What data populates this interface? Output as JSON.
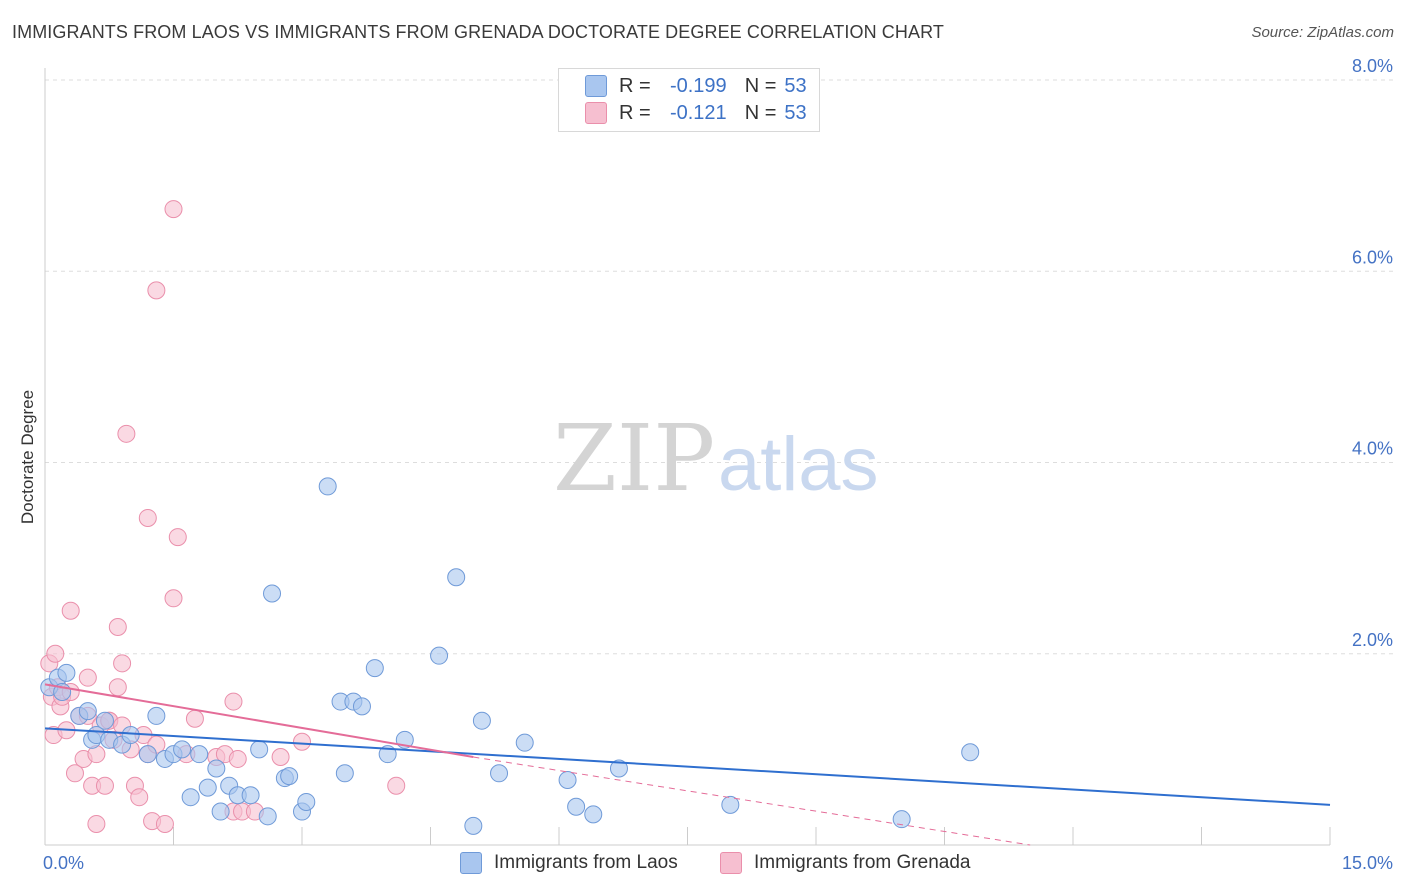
{
  "title": "IMMIGRANTS FROM LAOS VS IMMIGRANTS FROM GRENADA DOCTORATE DEGREE CORRELATION CHART",
  "source": "Source: ZipAtlas.com",
  "watermark": {
    "zip": "ZIP",
    "atlas": "atlas"
  },
  "colors": {
    "blue_fill": "#a9c6ef",
    "blue_stroke": "#6f9ad8",
    "blue_line": "#2f6fcf",
    "pink_fill": "#f6bfd0",
    "pink_stroke": "#ea8fab",
    "pink_line": "#e46c98",
    "axis_text": "#4472c4",
    "grid": "#dddddd"
  },
  "legend": {
    "rows": [
      {
        "r_label": "R = ",
        "r_value": "-0.199",
        "n_label": "N = ",
        "n_value": "53",
        "series": "blue"
      },
      {
        "r_label": "R = ",
        "r_value": "-0.121",
        "n_label": "N = ",
        "n_value": "53",
        "series": "pink"
      }
    ]
  },
  "chart_data": {
    "type": "scatter",
    "title": "IMMIGRANTS FROM LAOS VS IMMIGRANTS FROM GRENADA DOCTORATE DEGREE CORRELATION CHART",
    "xlabel": "",
    "ylabel": "Doctorate Degree",
    "xlim": [
      0,
      15
    ],
    "ylim": [
      0,
      8
    ],
    "x_tick_labels": [
      "0.0%",
      "15.0%"
    ],
    "y_ticks": [
      {
        "value": 2,
        "label": "2.0%"
      },
      {
        "value": 4,
        "label": "4.0%"
      },
      {
        "value": 6,
        "label": "6.0%"
      },
      {
        "value": 8,
        "label": "8.0%"
      }
    ],
    "legend_position": "top-center",
    "series": [
      {
        "name": "Immigrants from Laos",
        "color": "blue",
        "trend": {
          "x": [
            0,
            15
          ],
          "y": [
            1.22,
            0.42
          ]
        },
        "points": [
          [
            0.05,
            1.65
          ],
          [
            0.15,
            1.75
          ],
          [
            0.2,
            1.6
          ],
          [
            0.25,
            1.8
          ],
          [
            0.4,
            1.35
          ],
          [
            0.5,
            1.4
          ],
          [
            0.55,
            1.1
          ],
          [
            0.6,
            1.15
          ],
          [
            0.7,
            1.3
          ],
          [
            0.75,
            1.1
          ],
          [
            0.9,
            1.05
          ],
          [
            1.0,
            1.15
          ],
          [
            1.2,
            0.95
          ],
          [
            1.3,
            1.35
          ],
          [
            1.4,
            0.9
          ],
          [
            1.5,
            0.95
          ],
          [
            1.6,
            1.0
          ],
          [
            1.7,
            0.5
          ],
          [
            1.8,
            0.95
          ],
          [
            1.9,
            0.6
          ],
          [
            2.0,
            0.8
          ],
          [
            2.05,
            0.35
          ],
          [
            2.15,
            0.62
          ],
          [
            2.25,
            0.52
          ],
          [
            2.4,
            0.52
          ],
          [
            2.5,
            1.0
          ],
          [
            2.6,
            0.3
          ],
          [
            2.65,
            2.63
          ],
          [
            2.8,
            0.7
          ],
          [
            2.85,
            0.72
          ],
          [
            3.0,
            0.35
          ],
          [
            3.05,
            0.45
          ],
          [
            3.3,
            3.75
          ],
          [
            3.45,
            1.5
          ],
          [
            3.5,
            0.75
          ],
          [
            3.6,
            1.5
          ],
          [
            3.7,
            1.45
          ],
          [
            3.85,
            1.85
          ],
          [
            4.0,
            0.95
          ],
          [
            4.2,
            1.1
          ],
          [
            4.6,
            1.98
          ],
          [
            4.8,
            2.8
          ],
          [
            5.0,
            0.2
          ],
          [
            5.1,
            1.3
          ],
          [
            5.3,
            0.75
          ],
          [
            5.6,
            1.07
          ],
          [
            6.1,
            0.68
          ],
          [
            6.2,
            0.4
          ],
          [
            6.4,
            0.32
          ],
          [
            6.7,
            0.8
          ],
          [
            8.0,
            0.42
          ],
          [
            10.0,
            0.27
          ],
          [
            10.8,
            0.97
          ]
        ]
      },
      {
        "name": "Immigrants from Grenada",
        "color": "pink",
        "trend": {
          "x": [
            0,
            5
          ],
          "y": [
            1.68,
            0.92
          ]
        },
        "trend_dashed": {
          "x": [
            5,
            11.5
          ],
          "y": [
            0.92,
            0.0
          ]
        },
        "points": [
          [
            0.05,
            1.9
          ],
          [
            0.08,
            1.55
          ],
          [
            0.1,
            1.15
          ],
          [
            0.12,
            2.0
          ],
          [
            0.15,
            1.65
          ],
          [
            0.18,
            1.45
          ],
          [
            0.2,
            1.55
          ],
          [
            0.25,
            1.2
          ],
          [
            0.3,
            2.45
          ],
          [
            0.3,
            1.6
          ],
          [
            0.35,
            0.75
          ],
          [
            0.4,
            1.35
          ],
          [
            0.45,
            0.9
          ],
          [
            0.5,
            1.75
          ],
          [
            0.5,
            1.35
          ],
          [
            0.55,
            0.62
          ],
          [
            0.6,
            0.95
          ],
          [
            0.6,
            0.22
          ],
          [
            0.65,
            1.25
          ],
          [
            0.7,
            0.62
          ],
          [
            0.75,
            1.3
          ],
          [
            0.75,
            1.3
          ],
          [
            0.8,
            1.1
          ],
          [
            0.85,
            2.28
          ],
          [
            0.85,
            1.65
          ],
          [
            0.9,
            1.9
          ],
          [
            0.9,
            1.25
          ],
          [
            0.95,
            4.3
          ],
          [
            1.0,
            1.0
          ],
          [
            1.05,
            0.62
          ],
          [
            1.1,
            0.5
          ],
          [
            1.15,
            1.15
          ],
          [
            1.2,
            3.42
          ],
          [
            1.2,
            0.95
          ],
          [
            1.25,
            0.25
          ],
          [
            1.3,
            5.8
          ],
          [
            1.3,
            1.05
          ],
          [
            1.4,
            0.22
          ],
          [
            1.5,
            2.58
          ],
          [
            1.5,
            6.65
          ],
          [
            1.55,
            3.22
          ],
          [
            1.65,
            0.95
          ],
          [
            1.75,
            1.32
          ],
          [
            2.0,
            0.92
          ],
          [
            2.1,
            0.95
          ],
          [
            2.2,
            0.35
          ],
          [
            2.2,
            1.5
          ],
          [
            2.25,
            0.9
          ],
          [
            2.3,
            0.35
          ],
          [
            2.45,
            0.35
          ],
          [
            2.75,
            0.92
          ],
          [
            3.0,
            1.08
          ],
          [
            4.1,
            0.62
          ]
        ]
      }
    ]
  }
}
